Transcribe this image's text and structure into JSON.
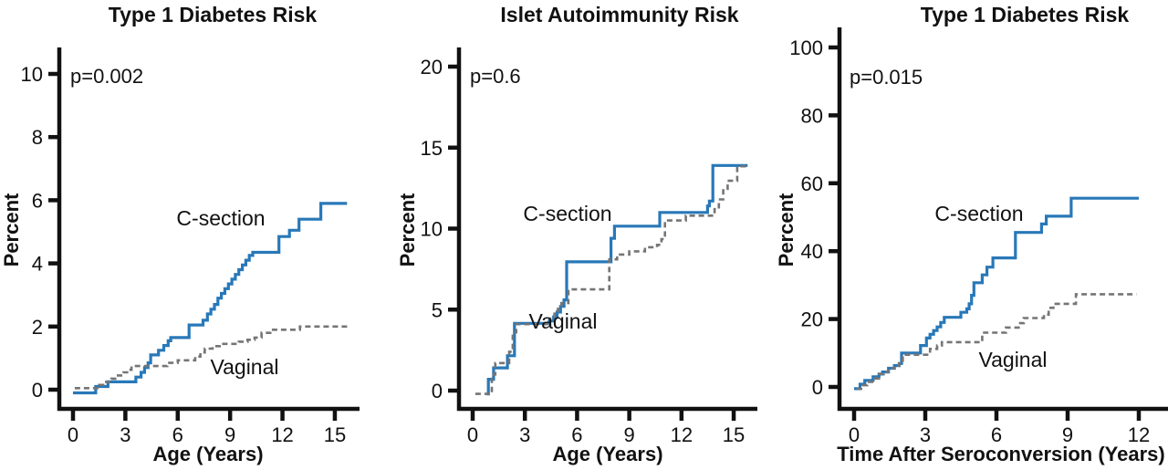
{
  "figure": {
    "background": "#ffffff",
    "colors": {
      "axis": "#111111",
      "csection": "#2878b8",
      "vaginal": "#757575",
      "vaginal_label": "#8f8f8f",
      "text": "#111111"
    }
  },
  "chart_data": [
    {
      "type": "line",
      "subtype": "step",
      "title": "Type 1 Diabetes Risk",
      "annotation": "p=0.002",
      "xlabel": "Age (Years)",
      "ylabel": "Percent",
      "xlim": [
        0,
        16.4
      ],
      "ylim": [
        -0.6,
        10.8
      ],
      "xticks": [
        0,
        3,
        6,
        9,
        12,
        15
      ],
      "yticks": [
        0,
        2,
        4,
        6,
        8,
        10
      ],
      "grid": false,
      "legend_position": "inline-labels",
      "series": [
        {
          "name": "C-section",
          "color": "#2878b8",
          "dash": "solid",
          "points": [
            [
              0,
              -0.1
            ],
            [
              1.3,
              0.1
            ],
            [
              2.0,
              0.25
            ],
            [
              3.6,
              0.4
            ],
            [
              3.9,
              0.55
            ],
            [
              4.1,
              0.7
            ],
            [
              4.3,
              0.85
            ],
            [
              4.45,
              1.1
            ],
            [
              4.9,
              1.25
            ],
            [
              5.2,
              1.4
            ],
            [
              5.45,
              1.55
            ],
            [
              5.6,
              1.65
            ],
            [
              6.65,
              2.05
            ],
            [
              7.45,
              2.2
            ],
            [
              7.7,
              2.4
            ],
            [
              7.9,
              2.55
            ],
            [
              8.1,
              2.7
            ],
            [
              8.3,
              2.9
            ],
            [
              8.5,
              3.05
            ],
            [
              8.7,
              3.2
            ],
            [
              8.9,
              3.35
            ],
            [
              9.1,
              3.5
            ],
            [
              9.3,
              3.65
            ],
            [
              9.5,
              3.8
            ],
            [
              9.7,
              3.95
            ],
            [
              9.9,
              4.1
            ],
            [
              10.1,
              4.25
            ],
            [
              10.3,
              4.35
            ],
            [
              11.8,
              4.85
            ],
            [
              12.4,
              5.05
            ],
            [
              12.95,
              5.4
            ],
            [
              14.2,
              5.9
            ],
            [
              15.7,
              5.9
            ]
          ]
        },
        {
          "name": "Vaginal",
          "color": "#757575",
          "dash": "dashed",
          "points": [
            [
              0.1,
              0.05
            ],
            [
              1.5,
              0.15
            ],
            [
              1.9,
              0.25
            ],
            [
              2.2,
              0.35
            ],
            [
              2.5,
              0.45
            ],
            [
              2.9,
              0.55
            ],
            [
              3.1,
              0.63
            ],
            [
              3.35,
              0.75
            ],
            [
              5.4,
              0.85
            ],
            [
              6.0,
              0.93
            ],
            [
              7.0,
              1.05
            ],
            [
              7.3,
              1.18
            ],
            [
              7.55,
              1.3
            ],
            [
              8.0,
              1.38
            ],
            [
              8.4,
              1.45
            ],
            [
              9.5,
              1.52
            ],
            [
              10.0,
              1.58
            ],
            [
              10.4,
              1.65
            ],
            [
              10.8,
              1.8
            ],
            [
              11.3,
              1.9
            ],
            [
              13.0,
              2.0
            ],
            [
              15.75,
              2.0
            ]
          ]
        }
      ]
    },
    {
      "type": "line",
      "subtype": "step",
      "title": "Islet Autoimmunity Risk",
      "annotation": "p=0.6",
      "xlabel": "Age (Years)",
      "ylabel": "Percent",
      "xlim": [
        0,
        16.4
      ],
      "ylim": [
        -0.6,
        21.5
      ],
      "xticks": [
        0,
        3,
        6,
        9,
        12,
        15
      ],
      "yticks": [
        0,
        5,
        10,
        15,
        20
      ],
      "grid": false,
      "legend_position": "inline-labels",
      "series": [
        {
          "name": "C-section",
          "color": "#2878b8",
          "dash": "solid",
          "points": [
            [
              0.8,
              -0.2
            ],
            [
              0.9,
              0.7
            ],
            [
              1.2,
              1.4
            ],
            [
              2.0,
              2.15
            ],
            [
              2.4,
              4.15
            ],
            [
              4.4,
              4.3
            ],
            [
              4.65,
              4.55
            ],
            [
              4.85,
              4.85
            ],
            [
              5.05,
              5.2
            ],
            [
              5.25,
              5.6
            ],
            [
              5.4,
              7.95
            ],
            [
              7.95,
              9.4
            ],
            [
              8.15,
              10.15
            ],
            [
              10.75,
              11.0
            ],
            [
              13.5,
              11.4
            ],
            [
              13.6,
              11.7
            ],
            [
              13.8,
              13.9
            ],
            [
              15.8,
              13.9
            ]
          ]
        },
        {
          "name": "Vaginal",
          "color": "#757575",
          "dash": "dashed",
          "points": [
            [
              0.15,
              -0.2
            ],
            [
              1.1,
              1.0
            ],
            [
              1.3,
              1.7
            ],
            [
              2.1,
              2.4
            ],
            [
              2.3,
              3.6
            ],
            [
              2.5,
              4.1
            ],
            [
              4.45,
              4.45
            ],
            [
              4.7,
              4.75
            ],
            [
              4.9,
              5.05
            ],
            [
              5.1,
              5.4
            ],
            [
              5.5,
              6.25
            ],
            [
              7.85,
              8.1
            ],
            [
              8.3,
              8.4
            ],
            [
              9.0,
              8.6
            ],
            [
              9.9,
              8.85
            ],
            [
              10.6,
              9.0
            ],
            [
              10.85,
              9.35
            ],
            [
              11.05,
              10.5
            ],
            [
              12.25,
              10.8
            ],
            [
              13.9,
              11.2
            ],
            [
              14.15,
              11.8
            ],
            [
              14.4,
              12.45
            ],
            [
              14.65,
              12.95
            ],
            [
              15.2,
              13.85
            ],
            [
              15.75,
              13.85
            ]
          ]
        }
      ]
    },
    {
      "type": "line",
      "subtype": "step",
      "title": "Type 1 Diabetes Risk",
      "annotation": "p=0.015",
      "xlabel": "Time After Seroconversion (Years)",
      "ylabel": "Percent",
      "xlim": [
        0,
        13.2
      ],
      "ylim": [
        -3,
        107
      ],
      "xticks": [
        0,
        3,
        6,
        9,
        12
      ],
      "yticks": [
        0,
        20,
        40,
        60,
        80,
        100
      ],
      "grid": false,
      "legend_position": "inline-labels",
      "series": [
        {
          "name": "C-section",
          "color": "#2878b8",
          "dash": "solid",
          "points": [
            [
              0,
              -0.5
            ],
            [
              0.25,
              0.8
            ],
            [
              0.45,
              1.9
            ],
            [
              0.8,
              3.0
            ],
            [
              1.05,
              3.8
            ],
            [
              1.2,
              4.4
            ],
            [
              1.45,
              5.5
            ],
            [
              1.7,
              6.3
            ],
            [
              1.9,
              6.9
            ],
            [
              2.0,
              10.0
            ],
            [
              2.8,
              12.2
            ],
            [
              3.05,
              14.4
            ],
            [
              3.2,
              15.5
            ],
            [
              3.35,
              16.6
            ],
            [
              3.5,
              17.7
            ],
            [
              3.65,
              19.0
            ],
            [
              3.8,
              20.5
            ],
            [
              4.5,
              22.0
            ],
            [
              4.75,
              23.0
            ],
            [
              4.85,
              24.5
            ],
            [
              4.95,
              27.0
            ],
            [
              5.05,
              30.7
            ],
            [
              5.4,
              33.0
            ],
            [
              5.6,
              35.3
            ],
            [
              5.85,
              38.0
            ],
            [
              6.8,
              45.5
            ],
            [
              7.9,
              48.0
            ],
            [
              8.1,
              50.3
            ],
            [
              9.15,
              55.6
            ],
            [
              12.0,
              55.6
            ]
          ]
        },
        {
          "name": "Vaginal",
          "color": "#757575",
          "dash": "dashed",
          "points": [
            [
              0.1,
              -0.5
            ],
            [
              0.3,
              0.5
            ],
            [
              0.55,
              1.5
            ],
            [
              0.85,
              2.5
            ],
            [
              1.05,
              3.8
            ],
            [
              1.25,
              4.4
            ],
            [
              1.45,
              5.5
            ],
            [
              1.7,
              6.3
            ],
            [
              1.9,
              6.9
            ],
            [
              2.05,
              9.5
            ],
            [
              3.2,
              11.2
            ],
            [
              3.5,
              12.2
            ],
            [
              3.7,
              13.2
            ],
            [
              5.4,
              16.0
            ],
            [
              6.4,
              17.5
            ],
            [
              7.0,
              18.8
            ],
            [
              7.15,
              20.3
            ],
            [
              8.0,
              21.3
            ],
            [
              8.2,
              23.3
            ],
            [
              8.4,
              24.5
            ],
            [
              9.35,
              27.3
            ],
            [
              11.9,
              27.3
            ]
          ]
        }
      ]
    }
  ]
}
